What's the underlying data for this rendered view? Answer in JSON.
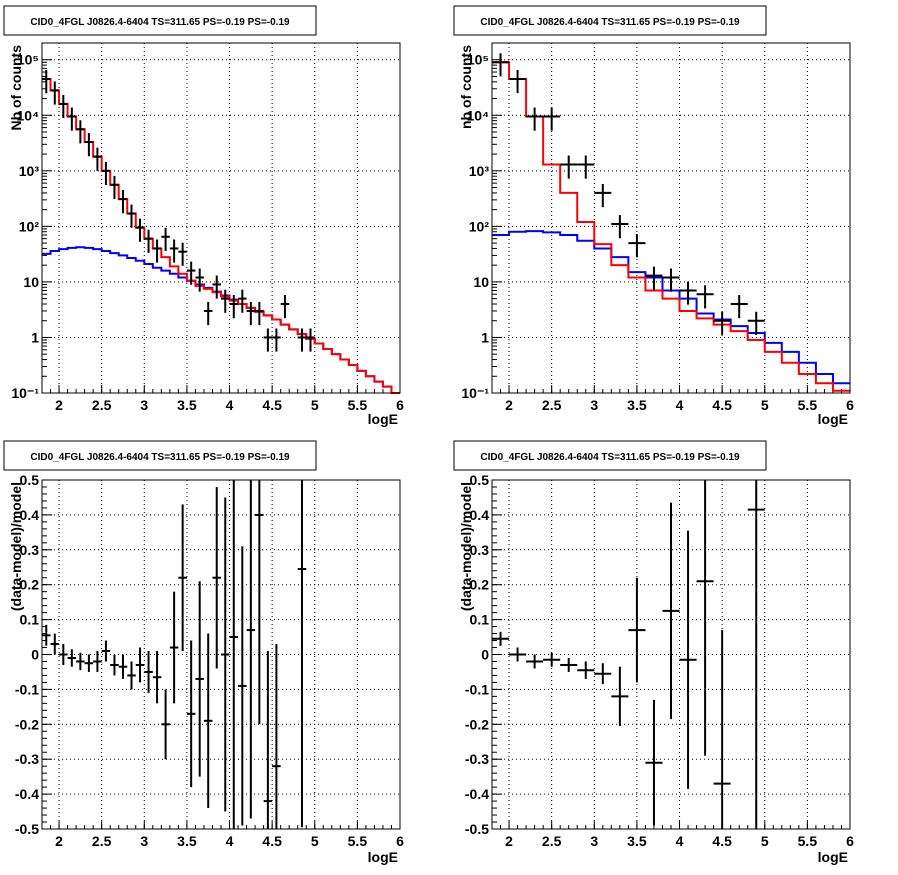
{
  "chart_data": [
    {
      "type": "step-hist-log",
      "title": "CID0_4FGL J0826.4-6404 TS=311.65 PS=-0.19 PS=-0.19",
      "xlabel": "logE",
      "ylabel": "Nb of counts",
      "xlim": [
        1.8,
        6
      ],
      "ylim": [
        0.1,
        200000
      ],
      "ylog": true,
      "grid": true,
      "xticks": [
        "2",
        "2.5",
        "3",
        "3.5",
        "4",
        "4.5",
        "5",
        "5.5",
        "6"
      ],
      "yticks": [
        {
          "v": 0.1,
          "label": "10⁻¹"
        },
        {
          "v": 1,
          "label": "1"
        },
        {
          "v": 10,
          "label": "10"
        },
        {
          "v": 100,
          "label": "10²"
        },
        {
          "v": 1000,
          "label": "10³"
        },
        {
          "v": 10000,
          "label": "10⁴"
        },
        {
          "v": 100000,
          "label": "10⁵"
        }
      ],
      "bin_width": 0.1,
      "series": [
        {
          "color": "#ff0000",
          "x_edges_start": 1.8,
          "values": [
            45000,
            28000,
            16000,
            9500,
            5600,
            3300,
            1800,
            1000,
            560,
            310,
            170,
            95,
            60,
            40,
            28,
            19,
            14,
            10.5,
            8.5,
            7.5,
            6.5,
            5.5,
            4.6,
            4.0,
            3.4,
            2.9,
            2.5,
            2.1,
            1.7,
            1.4,
            1.15,
            0.95,
            0.78,
            0.62,
            0.5,
            0.4,
            0.32,
            0.25,
            0.2,
            0.16,
            0.13,
            0.1
          ]
        },
        {
          "color": "#0000ff",
          "x_edges_start": 1.8,
          "values": [
            32,
            36,
            39,
            41,
            42,
            41,
            39,
            36,
            33,
            30,
            27,
            24,
            21,
            18,
            16,
            14,
            12,
            10.5,
            9,
            7.8,
            6.7,
            5.7,
            4.8,
            4.0,
            3.4,
            2.9,
            2.5,
            2.1,
            1.7,
            1.4,
            1.15,
            0.95,
            0.78,
            0.62,
            0.5,
            0.4,
            0.32,
            0.25,
            0.2,
            0.16,
            0.13,
            0.1
          ]
        }
      ],
      "points": [
        {
          "x": 1.85,
          "y": 45000
        },
        {
          "x": 1.95,
          "y": 28000
        },
        {
          "x": 2.05,
          "y": 16000
        },
        {
          "x": 2.15,
          "y": 9500
        },
        {
          "x": 2.25,
          "y": 5600
        },
        {
          "x": 2.35,
          "y": 3300
        },
        {
          "x": 2.45,
          "y": 1800
        },
        {
          "x": 2.55,
          "y": 1000
        },
        {
          "x": 2.65,
          "y": 560
        },
        {
          "x": 2.75,
          "y": 310
        },
        {
          "x": 2.85,
          "y": 170
        },
        {
          "x": 2.95,
          "y": 95
        },
        {
          "x": 3.05,
          "y": 60
        },
        {
          "x": 3.15,
          "y": 40
        },
        {
          "x": 3.25,
          "y": 65
        },
        {
          "x": 3.35,
          "y": 40
        },
        {
          "x": 3.45,
          "y": 35
        },
        {
          "x": 3.55,
          "y": 16
        },
        {
          "x": 3.65,
          "y": 12
        },
        {
          "x": 3.75,
          "y": 3
        },
        {
          "x": 3.85,
          "y": 9
        },
        {
          "x": 3.95,
          "y": 5
        },
        {
          "x": 4.05,
          "y": 4
        },
        {
          "x": 4.15,
          "y": 5
        },
        {
          "x": 4.25,
          "y": 3
        },
        {
          "x": 4.35,
          "y": 3
        },
        {
          "x": 4.45,
          "y": 1
        },
        {
          "x": 4.55,
          "y": 1
        },
        {
          "x": 4.65,
          "y": 4
        },
        {
          "x": 4.85,
          "y": 1
        },
        {
          "x": 4.95,
          "y": 1
        }
      ]
    },
    {
      "type": "step-hist-log",
      "title": "CID0_4FGL J0826.4-6404 TS=311.65 PS=-0.19 PS=-0.19",
      "xlabel": "logE",
      "ylabel": "nb of counts",
      "xlim": [
        1.8,
        6
      ],
      "ylim": [
        0.1,
        200000
      ],
      "ylog": true,
      "grid": true,
      "xticks": [
        "2",
        "2.5",
        "3",
        "3.5",
        "4",
        "4.5",
        "5",
        "5.5",
        "6"
      ],
      "yticks": [
        {
          "v": 0.1,
          "label": "10⁻¹"
        },
        {
          "v": 1,
          "label": "1"
        },
        {
          "v": 10,
          "label": "10"
        },
        {
          "v": 100,
          "label": "10²"
        },
        {
          "v": 1000,
          "label": "10³"
        },
        {
          "v": 10000,
          "label": "10⁴"
        },
        {
          "v": 100000,
          "label": "10⁵"
        }
      ],
      "bin_width": 0.2,
      "series": [
        {
          "color": "#ff0000",
          "x_edges_start": 1.8,
          "values": [
            90000,
            45000,
            9500,
            1300,
            400,
            120,
            48,
            20,
            12,
            7,
            5,
            3,
            2.2,
            1.7,
            1.3,
            0.9,
            0.55,
            0.35,
            0.22,
            0.15,
            0.11
          ]
        },
        {
          "color": "#0000ff",
          "x_edges_start": 1.8,
          "values": [
            70,
            80,
            82,
            78,
            70,
            55,
            40,
            28,
            15,
            12,
            7,
            5,
            2.7,
            2.1,
            1.6,
            1.2,
            0.8,
            0.55,
            0.35,
            0.22,
            0.15
          ]
        }
      ],
      "points": [
        {
          "x": 1.9,
          "y": 90000
        },
        {
          "x": 2.1,
          "y": 45000
        },
        {
          "x": 2.3,
          "y": 9500
        },
        {
          "x": 2.5,
          "y": 9500
        },
        {
          "x": 2.7,
          "y": 1300
        },
        {
          "x": 2.9,
          "y": 1300
        },
        {
          "x": 3.1,
          "y": 400
        },
        {
          "x": 3.3,
          "y": 110
        },
        {
          "x": 3.5,
          "y": 50
        },
        {
          "x": 3.7,
          "y": 13
        },
        {
          "x": 3.9,
          "y": 12
        },
        {
          "x": 4.1,
          "y": 7
        },
        {
          "x": 4.3,
          "y": 6
        },
        {
          "x": 4.5,
          "y": 2
        },
        {
          "x": 4.7,
          "y": 4
        },
        {
          "x": 4.9,
          "y": 2
        }
      ]
    },
    {
      "type": "residual-errorbars",
      "title": "CID0_4FGL J0826.4-6404 TS=311.65 PS=-0.19 PS=-0.19",
      "xlabel": "logE",
      "ylabel": "(data-model)/model",
      "xlim": [
        1.8,
        6
      ],
      "ylim": [
        -0.5,
        0.5
      ],
      "grid": true,
      "xticks": [
        "2",
        "2.5",
        "3",
        "3.5",
        "4",
        "4.5",
        "5",
        "5.5",
        "6"
      ],
      "yticks": [
        "-0.5",
        "-0.4",
        "-0.3",
        "-0.2",
        "-0.1",
        "0",
        "0.1",
        "0.2",
        "0.3",
        "0.4",
        "0.5"
      ],
      "points": [
        {
          "x": 1.85,
          "y": 0.055,
          "e": 0.03
        },
        {
          "x": 1.95,
          "y": 0.03,
          "e": 0.03
        },
        {
          "x": 2.05,
          "y": 0.0,
          "e": 0.03
        },
        {
          "x": 2.15,
          "y": -0.01,
          "e": 0.025
        },
        {
          "x": 2.25,
          "y": -0.02,
          "e": 0.025
        },
        {
          "x": 2.35,
          "y": -0.025,
          "e": 0.025
        },
        {
          "x": 2.45,
          "y": -0.02,
          "e": 0.03
        },
        {
          "x": 2.55,
          "y": 0.01,
          "e": 0.03
        },
        {
          "x": 2.65,
          "y": -0.03,
          "e": 0.03
        },
        {
          "x": 2.75,
          "y": -0.035,
          "e": 0.035
        },
        {
          "x": 2.85,
          "y": -0.06,
          "e": 0.04
        },
        {
          "x": 2.95,
          "y": -0.03,
          "e": 0.05
        },
        {
          "x": 3.05,
          "y": -0.05,
          "e": 0.06
        },
        {
          "x": 3.15,
          "y": -0.065,
          "e": 0.075
        },
        {
          "x": 3.25,
          "y": -0.2,
          "e": 0.1
        },
        {
          "x": 3.35,
          "y": 0.02,
          "e": 0.16
        },
        {
          "x": 3.45,
          "y": 0.22,
          "e": 0.21
        },
        {
          "x": 3.55,
          "y": -0.17,
          "e": 0.21
        },
        {
          "x": 3.65,
          "y": -0.07,
          "e": 0.28
        },
        {
          "x": 3.75,
          "y": -0.19,
          "e": 0.25
        },
        {
          "x": 3.85,
          "y": 0.22,
          "e": 0.26
        },
        {
          "x": 3.95,
          "y": 0.0,
          "e": 0.45
        },
        {
          "x": 4.05,
          "y": 0.05,
          "e": 0.56
        },
        {
          "x": 4.15,
          "y": -0.09,
          "e": 0.4
        },
        {
          "x": 4.25,
          "y": 0.07,
          "e": 0.54
        },
        {
          "x": 4.35,
          "y": 0.4,
          "e": 0.6
        },
        {
          "x": 4.45,
          "y": -0.42,
          "e": 0.43
        },
        {
          "x": 4.55,
          "y": -0.32,
          "e": 0.35
        },
        {
          "x": 4.85,
          "y": 0.245,
          "e": 0.74
        }
      ]
    },
    {
      "type": "residual-errorbars",
      "title": "CID0_4FGL J0826.4-6404 TS=311.65 PS=-0.19 PS=-0.19",
      "xlabel": "logE",
      "ylabel": "(data-model)/model",
      "xlim": [
        1.8,
        6
      ],
      "ylim": [
        -0.5,
        0.5
      ],
      "grid": true,
      "xticks": [
        "2",
        "2.5",
        "3",
        "3.5",
        "4",
        "4.5",
        "5",
        "5.5",
        "6"
      ],
      "yticks": [
        "-0.5",
        "-0.4",
        "-0.3",
        "-0.2",
        "-0.1",
        "0",
        "0.1",
        "0.2",
        "0.3",
        "0.4",
        "0.5"
      ],
      "points": [
        {
          "x": 1.9,
          "y": 0.045,
          "e": 0.02
        },
        {
          "x": 2.1,
          "y": 0.0,
          "e": 0.02
        },
        {
          "x": 2.3,
          "y": -0.02,
          "e": 0.02
        },
        {
          "x": 2.5,
          "y": -0.015,
          "e": 0.02
        },
        {
          "x": 2.7,
          "y": -0.03,
          "e": 0.02
        },
        {
          "x": 2.9,
          "y": -0.045,
          "e": 0.025
        },
        {
          "x": 3.1,
          "y": -0.055,
          "e": 0.03
        },
        {
          "x": 3.3,
          "y": -0.12,
          "e": 0.085
        },
        {
          "x": 3.5,
          "y": 0.07,
          "e": 0.15
        },
        {
          "x": 3.7,
          "y": -0.31,
          "e": 0.18
        },
        {
          "x": 3.9,
          "y": 0.125,
          "e": 0.31
        },
        {
          "x": 4.1,
          "y": -0.015,
          "e": 0.37
        },
        {
          "x": 4.3,
          "y": 0.21,
          "e": 0.5
        },
        {
          "x": 4.5,
          "y": -0.37,
          "e": 0.44
        },
        {
          "x": 4.9,
          "y": 0.415,
          "e": 0.95
        }
      ]
    }
  ]
}
